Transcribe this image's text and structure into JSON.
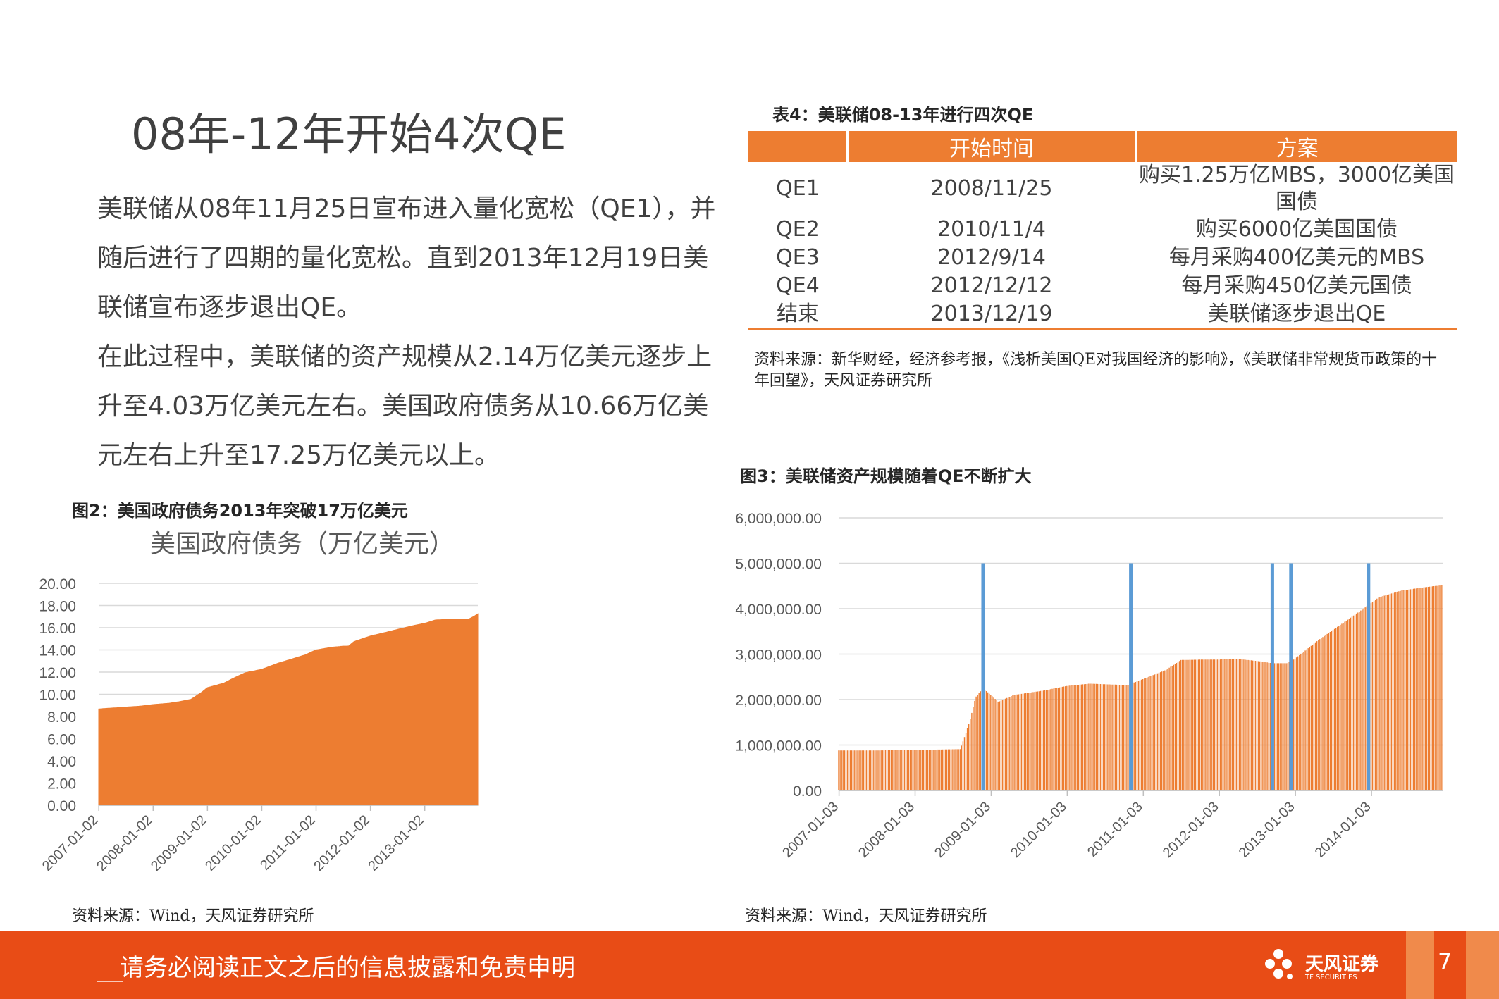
{
  "page": {
    "title": "08年-12年开始4次QE",
    "body_paragraphs": [
      "美联储从08年11月25日宣布进入量化宽松（QE1），并随后进行了四期的量化宽松。直到2013年12月19日美联储宣布逐步退出QE。",
      "在此过程中，美联储的资产规模从2.14万亿美元逐步上升至4.03万亿美元左右。美国政府债务从10.66万亿美元左右上升至17.25万亿美元以上。"
    ],
    "page_number": "7"
  },
  "table": {
    "caption": "表4：美联储08-13年进行四次QE",
    "headers": [
      "",
      "开始时间",
      "方案"
    ],
    "rows": [
      [
        "QE1",
        "2008/11/25",
        "购买1.25万亿MBS，3000亿美国国债"
      ],
      [
        "QE2",
        "2010/11/4",
        "购买6000亿美国国债"
      ],
      [
        "QE3",
        "2012/9/14",
        "每月采购400亿美元的MBS"
      ],
      [
        "QE4",
        "2012/12/12",
        "每月采购450亿美元国债"
      ],
      [
        "结束",
        "2013/12/19",
        "美联储逐步退出QE"
      ]
    ],
    "source": "资料来源：新华财经，经济参考报，《浅析美国QE对我国经济的影响》，《美联储非常规货币政策的十年回望》，天风证券研究所"
  },
  "fig2": {
    "caption": "图2：美国政府债务2013年突破17万亿美元",
    "source": "资料来源：Wind，天风证券研究所"
  },
  "fig3": {
    "caption": "图3：美联储资产规模随着QE不断扩大",
    "source": "资料来源：Wind，天风证券研究所"
  },
  "footer": {
    "notice": "请务必阅读正文之后的信息披露和免责申明",
    "logo_text": "天风证券",
    "logo_sub": "TF SECURITIES"
  },
  "colors": {
    "accent": "#ED7D31",
    "footer": "#E84C16",
    "qe_marker": "#5B9BD5"
  },
  "chart_data": [
    {
      "type": "area",
      "title": "美国政府债务（万亿美元）",
      "ylim": [
        0,
        20
      ],
      "yticks": [
        "0.00",
        "2.00",
        "4.00",
        "6.00",
        "8.00",
        "10.00",
        "12.00",
        "14.00",
        "16.00",
        "18.00",
        "20.00"
      ],
      "xticks": [
        "2007-01-02",
        "2008-01-02",
        "2009-01-02",
        "2010-01-02",
        "2011-01-02",
        "2012-01-02",
        "2013-01-02"
      ],
      "x_range": [
        2007.0,
        2013.98
      ],
      "series": [
        {
          "x": [
            2007.0,
            2007.2,
            2007.5,
            2007.8,
            2008.0,
            2008.3,
            2008.5,
            2008.7,
            2008.9,
            2009.0,
            2009.3,
            2009.5,
            2009.7,
            2010.0,
            2010.3,
            2010.5,
            2010.8,
            2011.0,
            2011.3,
            2011.5,
            2011.6,
            2011.7,
            2012.0,
            2012.3,
            2012.5,
            2012.8,
            2013.0,
            2013.2,
            2013.4,
            2013.6,
            2013.8,
            2013.9,
            2013.98
          ],
          "values": [
            8.68,
            8.75,
            8.85,
            8.95,
            9.08,
            9.2,
            9.35,
            9.55,
            10.2,
            10.6,
            11.0,
            11.5,
            11.95,
            12.25,
            12.8,
            13.1,
            13.55,
            14.0,
            14.25,
            14.34,
            14.35,
            14.75,
            15.25,
            15.6,
            15.85,
            16.2,
            16.4,
            16.7,
            16.75,
            16.75,
            16.75,
            17.0,
            17.25
          ]
        }
      ]
    },
    {
      "type": "bar",
      "ylim": [
        0,
        6000000
      ],
      "yticks": [
        "0.00",
        "1,000,000.00",
        "2,000,000.00",
        "3,000,000.00",
        "4,000,000.00",
        "5,000,000.00",
        "6,000,000.00"
      ],
      "xticks": [
        "2007-01-03",
        "2008-01-03",
        "2009-01-03",
        "2010-01-03",
        "2011-01-03",
        "2012-01-03",
        "2013-01-03",
        "2014-01-03"
      ],
      "x_range": [
        2007.0,
        2014.95
      ],
      "series": [
        {
          "name": "",
          "x": [
            2007.0,
            2007.5,
            2008.0,
            2008.3,
            2008.6,
            2008.72,
            2008.8,
            2008.9,
            2009.0,
            2009.1,
            2009.3,
            2009.5,
            2009.7,
            2010.0,
            2010.3,
            2010.6,
            2010.8,
            2011.0,
            2011.3,
            2011.5,
            2011.8,
            2012.0,
            2012.2,
            2012.5,
            2012.7,
            2012.9,
            2013.0,
            2013.3,
            2013.6,
            2013.9,
            2014.1,
            2014.4,
            2014.7,
            2014.95
          ],
          "values": [
            880000,
            880000,
            895000,
            900000,
            910000,
            1500000,
            2050000,
            2250000,
            2100000,
            1950000,
            2100000,
            2150000,
            2200000,
            2300000,
            2350000,
            2330000,
            2320000,
            2450000,
            2650000,
            2870000,
            2880000,
            2880000,
            2900000,
            2850000,
            2800000,
            2800000,
            2900000,
            3300000,
            3650000,
            4000000,
            4250000,
            4400000,
            4470000,
            4520000
          ]
        }
      ],
      "qe_markers": [
        "2008-11-25",
        "2010-11-04",
        "2012-09-14",
        "2012-12-12",
        "2013-12-19"
      ]
    }
  ]
}
